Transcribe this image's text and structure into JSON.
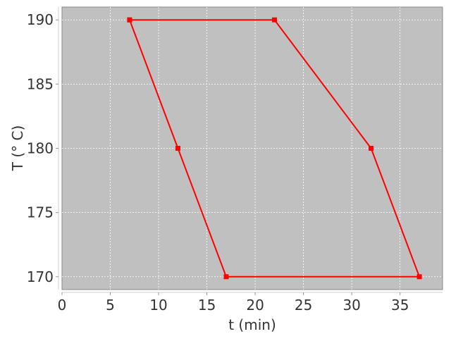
{
  "chart_data": {
    "type": "line",
    "title": "",
    "xlabel": "t (min)",
    "ylabel": "T (° C)",
    "xlim": [
      0,
      39.4
    ],
    "ylim": [
      169,
      191
    ],
    "xticks": [
      0,
      5,
      10,
      15,
      20,
      25,
      30,
      35
    ],
    "yticks": [
      170,
      175,
      180,
      185,
      190
    ],
    "grid": true,
    "legend": "none",
    "background_color": "#c0c0c0",
    "series": [
      {
        "color": "#ff0000",
        "marker": "square",
        "x": [
          7,
          22,
          32,
          37,
          17,
          12,
          7
        ],
        "y": [
          190,
          190,
          180,
          170,
          170,
          180,
          190
        ]
      }
    ]
  }
}
